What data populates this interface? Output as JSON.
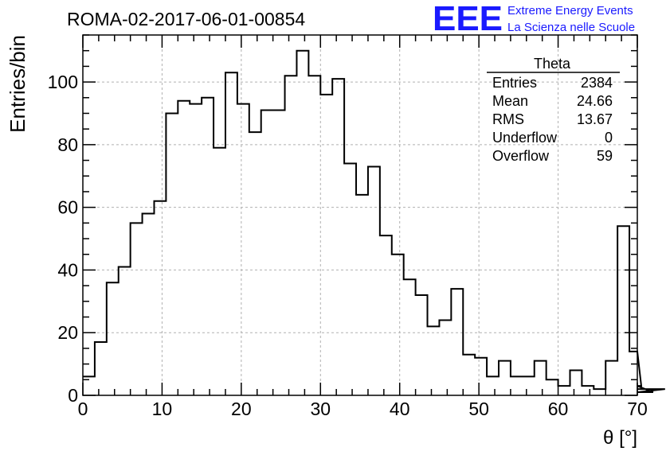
{
  "chart_data": {
    "type": "histogram",
    "title": "ROMA-02-2017-06-01-00854",
    "xlabel": "θ [°]",
    "ylabel": "Entries/bin",
    "xlim": [
      0,
      70
    ],
    "ylim": [
      0,
      115
    ],
    "x_ticks": [
      0,
      10,
      20,
      30,
      40,
      50,
      60,
      70
    ],
    "y_ticks": [
      0,
      20,
      40,
      60,
      80,
      100
    ],
    "grid": true,
    "bin_width": 1.5,
    "bin_start": 0,
    "series": [
      {
        "values": [
          6,
          17,
          36,
          41,
          55,
          58,
          62,
          90,
          94,
          93,
          95,
          79,
          103,
          93,
          84,
          91,
          91,
          102,
          110,
          102,
          96,
          101,
          74,
          64,
          73,
          51,
          45,
          37,
          32,
          22,
          24,
          34,
          13,
          12,
          6,
          11,
          6,
          6,
          11,
          5,
          3,
          8,
          3,
          2,
          11,
          54,
          14,
          3,
          1,
          2
        ]
      }
    ],
    "stats_box": {
      "title": "Theta",
      "rows": [
        {
          "label": "Entries",
          "value": "2384"
        },
        {
          "label": "Mean",
          "value": "24.66"
        },
        {
          "label": "RMS",
          "value": "13.67"
        },
        {
          "label": "Underflow",
          "value": "0"
        },
        {
          "label": "Overflow",
          "value": "59"
        }
      ]
    },
    "logo": {
      "mark": "EEE",
      "line1": "Extreme Energy Events",
      "line2": "La Scienza nelle Scuole",
      "color": "#1a1aff"
    }
  }
}
